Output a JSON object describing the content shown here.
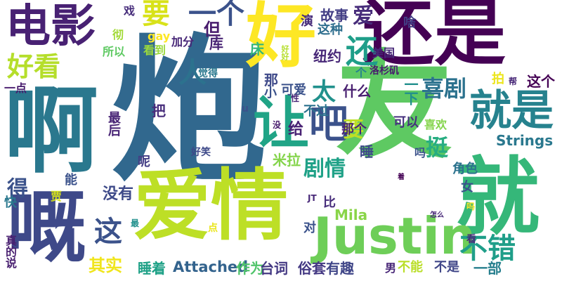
{
  "words": [
    {
      "text": "炮",
      "color": "#31688e"
    },
    {
      "text": "友",
      "color": "#5ec962"
    },
    {
      "text": "还是",
      "color": "#440154"
    },
    {
      "text": "爱情",
      "color": "#bddf26"
    },
    {
      "text": "啊",
      "color": "#2a788e"
    },
    {
      "text": "好",
      "color": "#fde725"
    },
    {
      "text": "就",
      "color": "#35b779"
    },
    {
      "text": "Justin",
      "color": "#6ece58"
    },
    {
      "text": "电影",
      "color": "#482173"
    },
    {
      "text": "就是",
      "color": "#26828e"
    },
    {
      "text": "嘅",
      "color": "#3e4989"
    },
    {
      "text": "让",
      "color": "#20a486"
    },
    {
      "text": "好看",
      "color": "#b5de2b"
    },
    {
      "text": "还",
      "color": "#1f9e89"
    },
    {
      "text": "一个",
      "color": "#3b528b"
    },
    {
      "text": "要",
      "color": "#d8e219"
    },
    {
      "text": "吧",
      "color": "#3b528b"
    },
    {
      "text": "人",
      "color": "#2c728e"
    },
    {
      "text": "太",
      "color": "#21918c"
    },
    {
      "text": "喜剧",
      "color": "#2c728e"
    },
    {
      "text": "不错",
      "color": "#1f9e89"
    },
    {
      "text": "这",
      "color": "#3b528b"
    },
    {
      "text": "剧情",
      "color": "#1fa187"
    },
    {
      "text": "挺",
      "color": "#27ad81"
    },
    {
      "text": "其实",
      "color": "#f0e51c"
    },
    {
      "text": "Attached",
      "color": "#33638d"
    },
    {
      "text": "得",
      "color": "#3b528b"
    },
    {
      "text": "没有",
      "color": "#3e4a89"
    },
    {
      "text": "但",
      "color": "#481b6d"
    },
    {
      "text": "要",
      "color": "#bfdf25"
    },
    {
      "text": "Strings",
      "color": "#2a788e"
    },
    {
      "text": "爱",
      "color": "#472c7a"
    },
    {
      "text": "故事",
      "color": "#433e85"
    },
    {
      "text": "纽约",
      "color": "#482878"
    },
    {
      "text": "可爱",
      "color": "#3b528b"
    },
    {
      "text": "睡着",
      "color": "#1fa187"
    },
    {
      "text": "作为",
      "color": "#50c46a"
    },
    {
      "text": "台词",
      "color": "#443983"
    },
    {
      "text": "俗套",
      "color": "#443983"
    },
    {
      "text": "有趣",
      "color": "#404688"
    },
    {
      "text": "不能",
      "color": "#bade28"
    },
    {
      "text": "不是",
      "color": "#404688"
    },
    {
      "text": "一部",
      "color": "#277f8e"
    },
    {
      "text": "Mila",
      "color": "#89d548"
    },
    {
      "text": "米拉",
      "color": "#84d44b"
    },
    {
      "text": "一下",
      "color": "#218f8d"
    },
    {
      "text": "这个",
      "color": "#440154"
    },
    {
      "text": "那个",
      "color": "#482475"
    },
    {
      "text": "什么",
      "color": "#481f70"
    },
    {
      "text": "给",
      "color": "#482173"
    },
    {
      "text": "睡",
      "color": "#3e4989"
    },
    {
      "text": "不过",
      "color": "#2c728e"
    },
    {
      "text": "可以",
      "color": "#46307e"
    },
    {
      "text": "喜欢",
      "color": "#84d44b"
    },
    {
      "text": "角色",
      "color": "#2c728e"
    },
    {
      "text": "吗",
      "color": "#3b528b"
    },
    {
      "text": "戏",
      "color": "#472d7b"
    },
    {
      "text": "加分",
      "color": "#482878"
    },
    {
      "text": "gay",
      "color": "#fde725"
    },
    {
      "text": "看到",
      "color": "#9bd93c"
    },
    {
      "text": "库",
      "color": "#482374"
    },
    {
      "text": "床",
      "color": "#32b67a"
    },
    {
      "text": "演",
      "color": "#472c7a"
    },
    {
      "text": "这种",
      "color": "#2e6e8e"
    },
    {
      "text": "啥",
      "color": "#433e85"
    },
    {
      "text": "美国",
      "color": "#482878"
    },
    {
      "text": "洛杉矶",
      "color": "#481b6d"
    },
    {
      "text": "那",
      "color": "#3e4989"
    },
    {
      "text": "所以",
      "color": "#5ec962"
    },
    {
      "text": "彻",
      "color": "#a2da37"
    },
    {
      "text": "一点",
      "color": "#481b6d"
    },
    {
      "text": "小",
      "color": "#3b528b"
    },
    {
      "text": "把",
      "color": "#472d7b"
    },
    {
      "text": "最后",
      "color": "#482475"
    },
    {
      "text": "呢",
      "color": "#433e85"
    },
    {
      "text": "好笑",
      "color": "#3e4989"
    },
    {
      "text": "觉得",
      "color": "#2a788e"
    },
    {
      "text": "拍",
      "color": "#ece51b"
    },
    {
      "text": "能",
      "color": "#3b528b"
    },
    {
      "text": "快",
      "color": "#2a788e"
    },
    {
      "text": "贾",
      "color": "#d5e21a"
    },
    {
      "text": "女",
      "color": "#3b528b"
    },
    {
      "text": "比",
      "color": "#472d7b"
    },
    {
      "text": "对",
      "color": "#3b528b"
    },
    {
      "text": "JT",
      "color": "#482878"
    },
    {
      "text": "怎么",
      "color": "#482878"
    },
    {
      "text": "点",
      "color": "#eae51a"
    },
    {
      "text": "最",
      "color": "#21908d"
    },
    {
      "text": "看",
      "color": "#472c7a"
    },
    {
      "text": "真的说",
      "color": "#481f70"
    },
    {
      "text": "男",
      "color": "#482677"
    },
    {
      "text": "没",
      "color": "#481b6d"
    },
    {
      "text": "性",
      "color": "#482677"
    },
    {
      "text": "着",
      "color": "#440154"
    },
    {
      "text": "好好",
      "color": "#b5de2b"
    },
    {
      "text": "u",
      "color": "#3b528b"
    },
    {
      "text": "吗",
      "color": "#fde725"
    },
    {
      "text": "个",
      "color": "#26828e"
    },
    {
      "text": "帮",
      "color": "#482878"
    }
  ]
}
